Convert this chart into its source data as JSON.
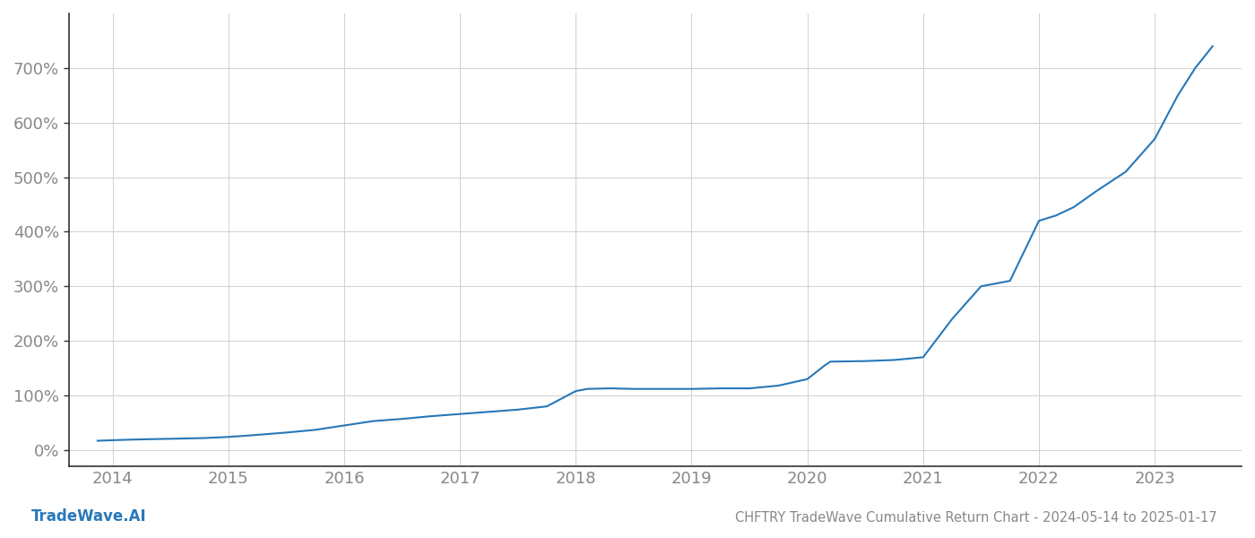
{
  "title": "CHFTRY TradeWave Cumulative Return Chart - 2024-05-14 to 2025-01-17",
  "watermark": "TradeWave.AI",
  "line_color": "#2878b8",
  "background_color": "#ffffff",
  "grid_color": "#d0d0d0",
  "text_color": "#888888",
  "spine_color": "#333333",
  "x_years": [
    2014,
    2015,
    2016,
    2017,
    2018,
    2019,
    2020,
    2021,
    2022,
    2023
  ],
  "y_ticks": [
    0,
    100,
    200,
    300,
    400,
    500,
    600,
    700
  ],
  "xlim": [
    2013.62,
    2023.75
  ],
  "ylim": [
    -30,
    800
  ],
  "data_x": [
    2013.87,
    2014.0,
    2014.15,
    2014.35,
    2014.6,
    2014.8,
    2015.0,
    2015.2,
    2015.5,
    2015.75,
    2016.0,
    2016.25,
    2016.5,
    2016.75,
    2017.0,
    2017.25,
    2017.5,
    2017.75,
    2018.0,
    2018.1,
    2018.3,
    2018.5,
    2018.75,
    2019.0,
    2019.25,
    2019.5,
    2019.75,
    2020.0,
    2020.15,
    2020.2,
    2020.5,
    2020.75,
    2021.0,
    2021.25,
    2021.5,
    2021.75,
    2022.0,
    2022.15,
    2022.3,
    2022.5,
    2022.75,
    2023.0,
    2023.1,
    2023.2,
    2023.35,
    2023.5
  ],
  "data_y": [
    17,
    18,
    19,
    20,
    21,
    22,
    24,
    27,
    32,
    37,
    45,
    53,
    57,
    62,
    66,
    70,
    74,
    80,
    108,
    112,
    113,
    112,
    112,
    112,
    113,
    113,
    118,
    130,
    155,
    162,
    163,
    165,
    170,
    240,
    300,
    310,
    420,
    430,
    445,
    475,
    510,
    570,
    610,
    650,
    700,
    740
  ]
}
